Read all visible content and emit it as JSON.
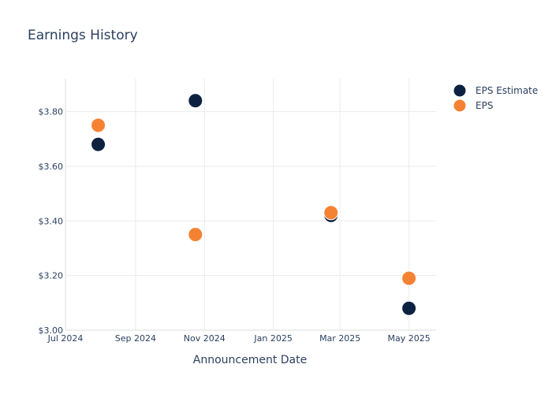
{
  "chart_data": {
    "type": "scatter",
    "title": "Earnings History",
    "xlabel": "Announcement Date",
    "ylabel": "",
    "x_axis": {
      "kind": "date",
      "range": [
        "2024-07-01",
        "2025-05-25"
      ],
      "ticks": [
        {
          "value": "2024-07-01",
          "label": "Jul 2024"
        },
        {
          "value": "2024-09-01",
          "label": "Sep 2024"
        },
        {
          "value": "2024-11-01",
          "label": "Nov 2024"
        },
        {
          "value": "2025-01-01",
          "label": "Jan 2025"
        },
        {
          "value": "2025-03-01",
          "label": "Mar 2025"
        },
        {
          "value": "2025-05-01",
          "label": "May 2025"
        }
      ]
    },
    "y_axis": {
      "range": [
        3.0,
        3.92
      ],
      "ticks": [
        {
          "value": 3.0,
          "label": "$3.00"
        },
        {
          "value": 3.2,
          "label": "$3.20"
        },
        {
          "value": 3.4,
          "label": "$3.40"
        },
        {
          "value": 3.6,
          "label": "$3.60"
        },
        {
          "value": 3.8,
          "label": "$3.80"
        }
      ]
    },
    "grid": true,
    "legend": {
      "placement": "top-right"
    },
    "series": [
      {
        "name": "EPS Estimate",
        "color": "#0d2240",
        "points": [
          {
            "x": "2024-07-30",
            "y": 3.68
          },
          {
            "x": "2024-10-24",
            "y": 3.84
          },
          {
            "x": "2025-02-21",
            "y": 3.42
          },
          {
            "x": "2025-05-01",
            "y": 3.08
          }
        ]
      },
      {
        "name": "EPS",
        "color": "#f58233",
        "points": [
          {
            "x": "2024-07-30",
            "y": 3.75
          },
          {
            "x": "2024-10-24",
            "y": 3.35
          },
          {
            "x": "2025-02-21",
            "y": 3.43
          },
          {
            "x": "2025-05-01",
            "y": 3.19
          }
        ]
      }
    ]
  }
}
